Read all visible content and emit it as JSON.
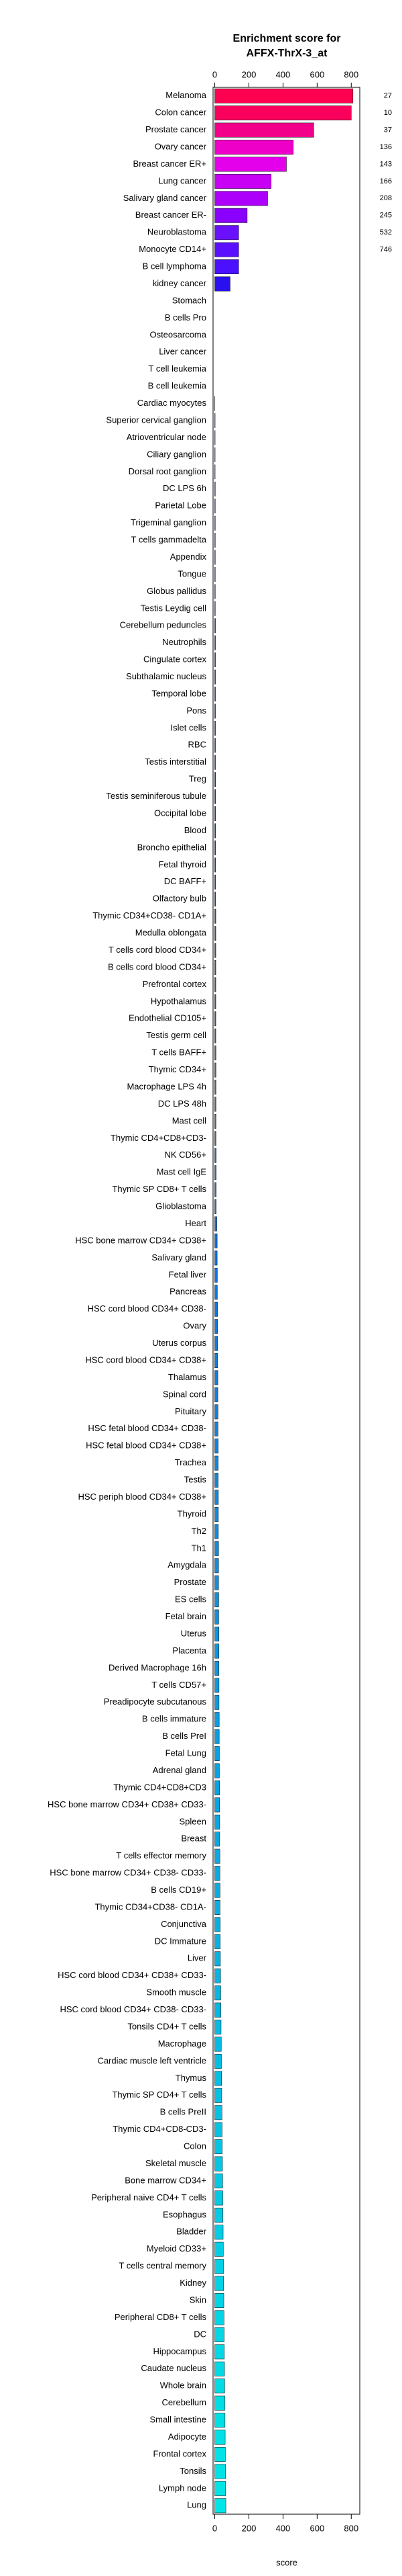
{
  "chart_data": {
    "type": "barh",
    "title": [
      "Enrichment score for",
      "AFFX-ThrX-3_at"
    ],
    "xlabel": "score",
    "xlim": [
      -10,
      850
    ],
    "xticks": [
      0,
      200,
      400,
      600,
      800
    ],
    "categories": [
      "Melanoma",
      "Colon cancer",
      "Prostate cancer",
      "Ovary cancer",
      "Breast cancer ER+",
      "Lung cancer",
      "Salivary gland cancer",
      "Breast cancer ER-",
      "Neuroblastoma",
      "Monocyte CD14+",
      "B cell lymphoma",
      "kidney cancer",
      "Stomach",
      "B cells Pro",
      "Osteosarcoma",
      "Liver cancer",
      "T cell leukemia",
      "B cell leukemia",
      "Cardiac myocytes",
      "Superior cervical ganglion",
      "Atrioventricular node",
      "Ciliary ganglion",
      "Dorsal root ganglion",
      "DC LPS 6h",
      "Parietal Lobe",
      "Trigeminal ganglion",
      "T cells gammadelta",
      "Appendix",
      "Tongue",
      "Globus pallidus",
      "Testis Leydig cell",
      "Cerebellum peduncles",
      "Neutrophils",
      "Cingulate cortex",
      "Subthalamic nucleus",
      "Temporal lobe",
      "Pons",
      "Islet cells",
      "RBC",
      "Testis interstitial",
      "Treg",
      "Testis seminiferous tubule",
      "Occipital lobe",
      "Blood",
      "Broncho epithelial",
      "Fetal thyroid",
      "DC BAFF+",
      "Olfactory bulb",
      "Thymic CD34+CD38- CD1A+",
      "Medulla oblongata",
      "T cells cord blood CD34+",
      "B cells cord blood CD34+",
      "Prefrontal cortex",
      "Hypothalamus",
      "Endothelial CD105+",
      "Testis germ cell",
      "T cells BAFF+",
      "Thymic CD34+",
      "Macrophage LPS 4h",
      "DC LPS 48h",
      "Mast cell",
      "Thymic CD4+CD8+CD3-",
      "NK CD56+",
      "Mast cell IgE",
      "Thymic SP CD8+ T cells",
      "Glioblastoma",
      "Heart",
      "HSC bone marrow CD34+ CD38+",
      "Salivary gland",
      "Fetal liver",
      "Pancreas",
      "HSC cord blood CD34+ CD38-",
      "Ovary",
      "Uterus corpus",
      "HSC cord blood CD34+ CD38+",
      "Thalamus",
      "Spinal cord",
      "Pituitary",
      "HSC fetal blood CD34+ CD38-",
      "HSC fetal blood CD34+ CD38+",
      "Trachea",
      "Testis",
      "HSC periph blood CD34+ CD38+",
      "Thyroid",
      "Th2",
      "Th1",
      "Amygdala",
      "Prostate",
      "ES cells",
      "Fetal brain",
      "Uterus",
      "Placenta",
      "Derived Macrophage 16h",
      "T cells CD57+",
      "Preadipocyte subcutanous",
      "B cells immature",
      "B cells PreI",
      "Fetal Lung",
      "Adrenal gland",
      "Thymic CD4+CD8+CD3",
      "HSC bone marrow CD34+ CD38+ CD33-",
      "Spleen",
      "Breast",
      "T cells effector memory",
      "HSC bone marrow CD34+ CD38- CD33-",
      "B cells CD19+",
      "Thymic CD34+CD38- CD1A-",
      "Conjunctiva",
      "DC Immature",
      "Liver",
      "HSC cord blood CD34+ CD38+ CD33-",
      "Smooth muscle",
      "HSC cord blood CD34+ CD38- CD33-",
      "Tonsils CD4+ T cells",
      "Macrophage",
      "Cardiac muscle left ventricle",
      "Thymus",
      "Thymic SP CD4+ T cells",
      "B cells PreII",
      "Thymic CD4+CD8-CD3-",
      "Colon",
      "Skeletal muscle",
      "Bone marrow CD34+",
      "Peripheral naive CD4+ T cells",
      "Esophagus",
      "Bladder",
      "Myeloid CD33+",
      "T cells central memory",
      "Kidney",
      "Skin",
      "Peripheral CD8+ T cells",
      "DC",
      "Hippocampus",
      "Caudate nucleus",
      "Whole brain",
      "Cerebellum",
      "Small intestine",
      "Adipocyte",
      "Frontal cortex",
      "Tonsils",
      "Lymph node",
      "Lung"
    ],
    "values": [
      810,
      800,
      580,
      460,
      420,
      330,
      310,
      190,
      140,
      140,
      140,
      90,
      0,
      0,
      0,
      0,
      0,
      0,
      1,
      2,
      2,
      2,
      2,
      3,
      3,
      3,
      3,
      3,
      3,
      3,
      3,
      4,
      4,
      4,
      4,
      4,
      4,
      4,
      4,
      4,
      5,
      5,
      5,
      5,
      5,
      5,
      5,
      5,
      6,
      6,
      6,
      6,
      6,
      6,
      6,
      6,
      7,
      7,
      7,
      7,
      7,
      7,
      8,
      8,
      8,
      8,
      12,
      14,
      14,
      15,
      15,
      16,
      16,
      17,
      17,
      18,
      18,
      19,
      19,
      20,
      20,
      20,
      21,
      21,
      21,
      22,
      22,
      22,
      23,
      23,
      24,
      24,
      24,
      25,
      25,
      26,
      26,
      27,
      27,
      28,
      28,
      29,
      29,
      30,
      30,
      31,
      31,
      32,
      32,
      33,
      34,
      35,
      36,
      37,
      38,
      39,
      40,
      41,
      42,
      43,
      44,
      45,
      46,
      47,
      48,
      49,
      50,
      51,
      52,
      53,
      54,
      55,
      56,
      57,
      58,
      59,
      60,
      61,
      62,
      63,
      64,
      65
    ],
    "side_labels": [
      27,
      10,
      37,
      136,
      143,
      166,
      208,
      245,
      532,
      746
    ],
    "top_colors": [
      "#ff0050",
      "#f8005c",
      "#f2008a",
      "#ee00c8",
      "#e400ea",
      "#c800f4",
      "#ac00fa",
      "#8a00ff",
      "#6a10ff",
      "#5a10ff",
      "#4a10ff",
      "#2a10f0"
    ],
    "low_color_range": [
      "#1a1ad8",
      "#00e6e6"
    ]
  }
}
